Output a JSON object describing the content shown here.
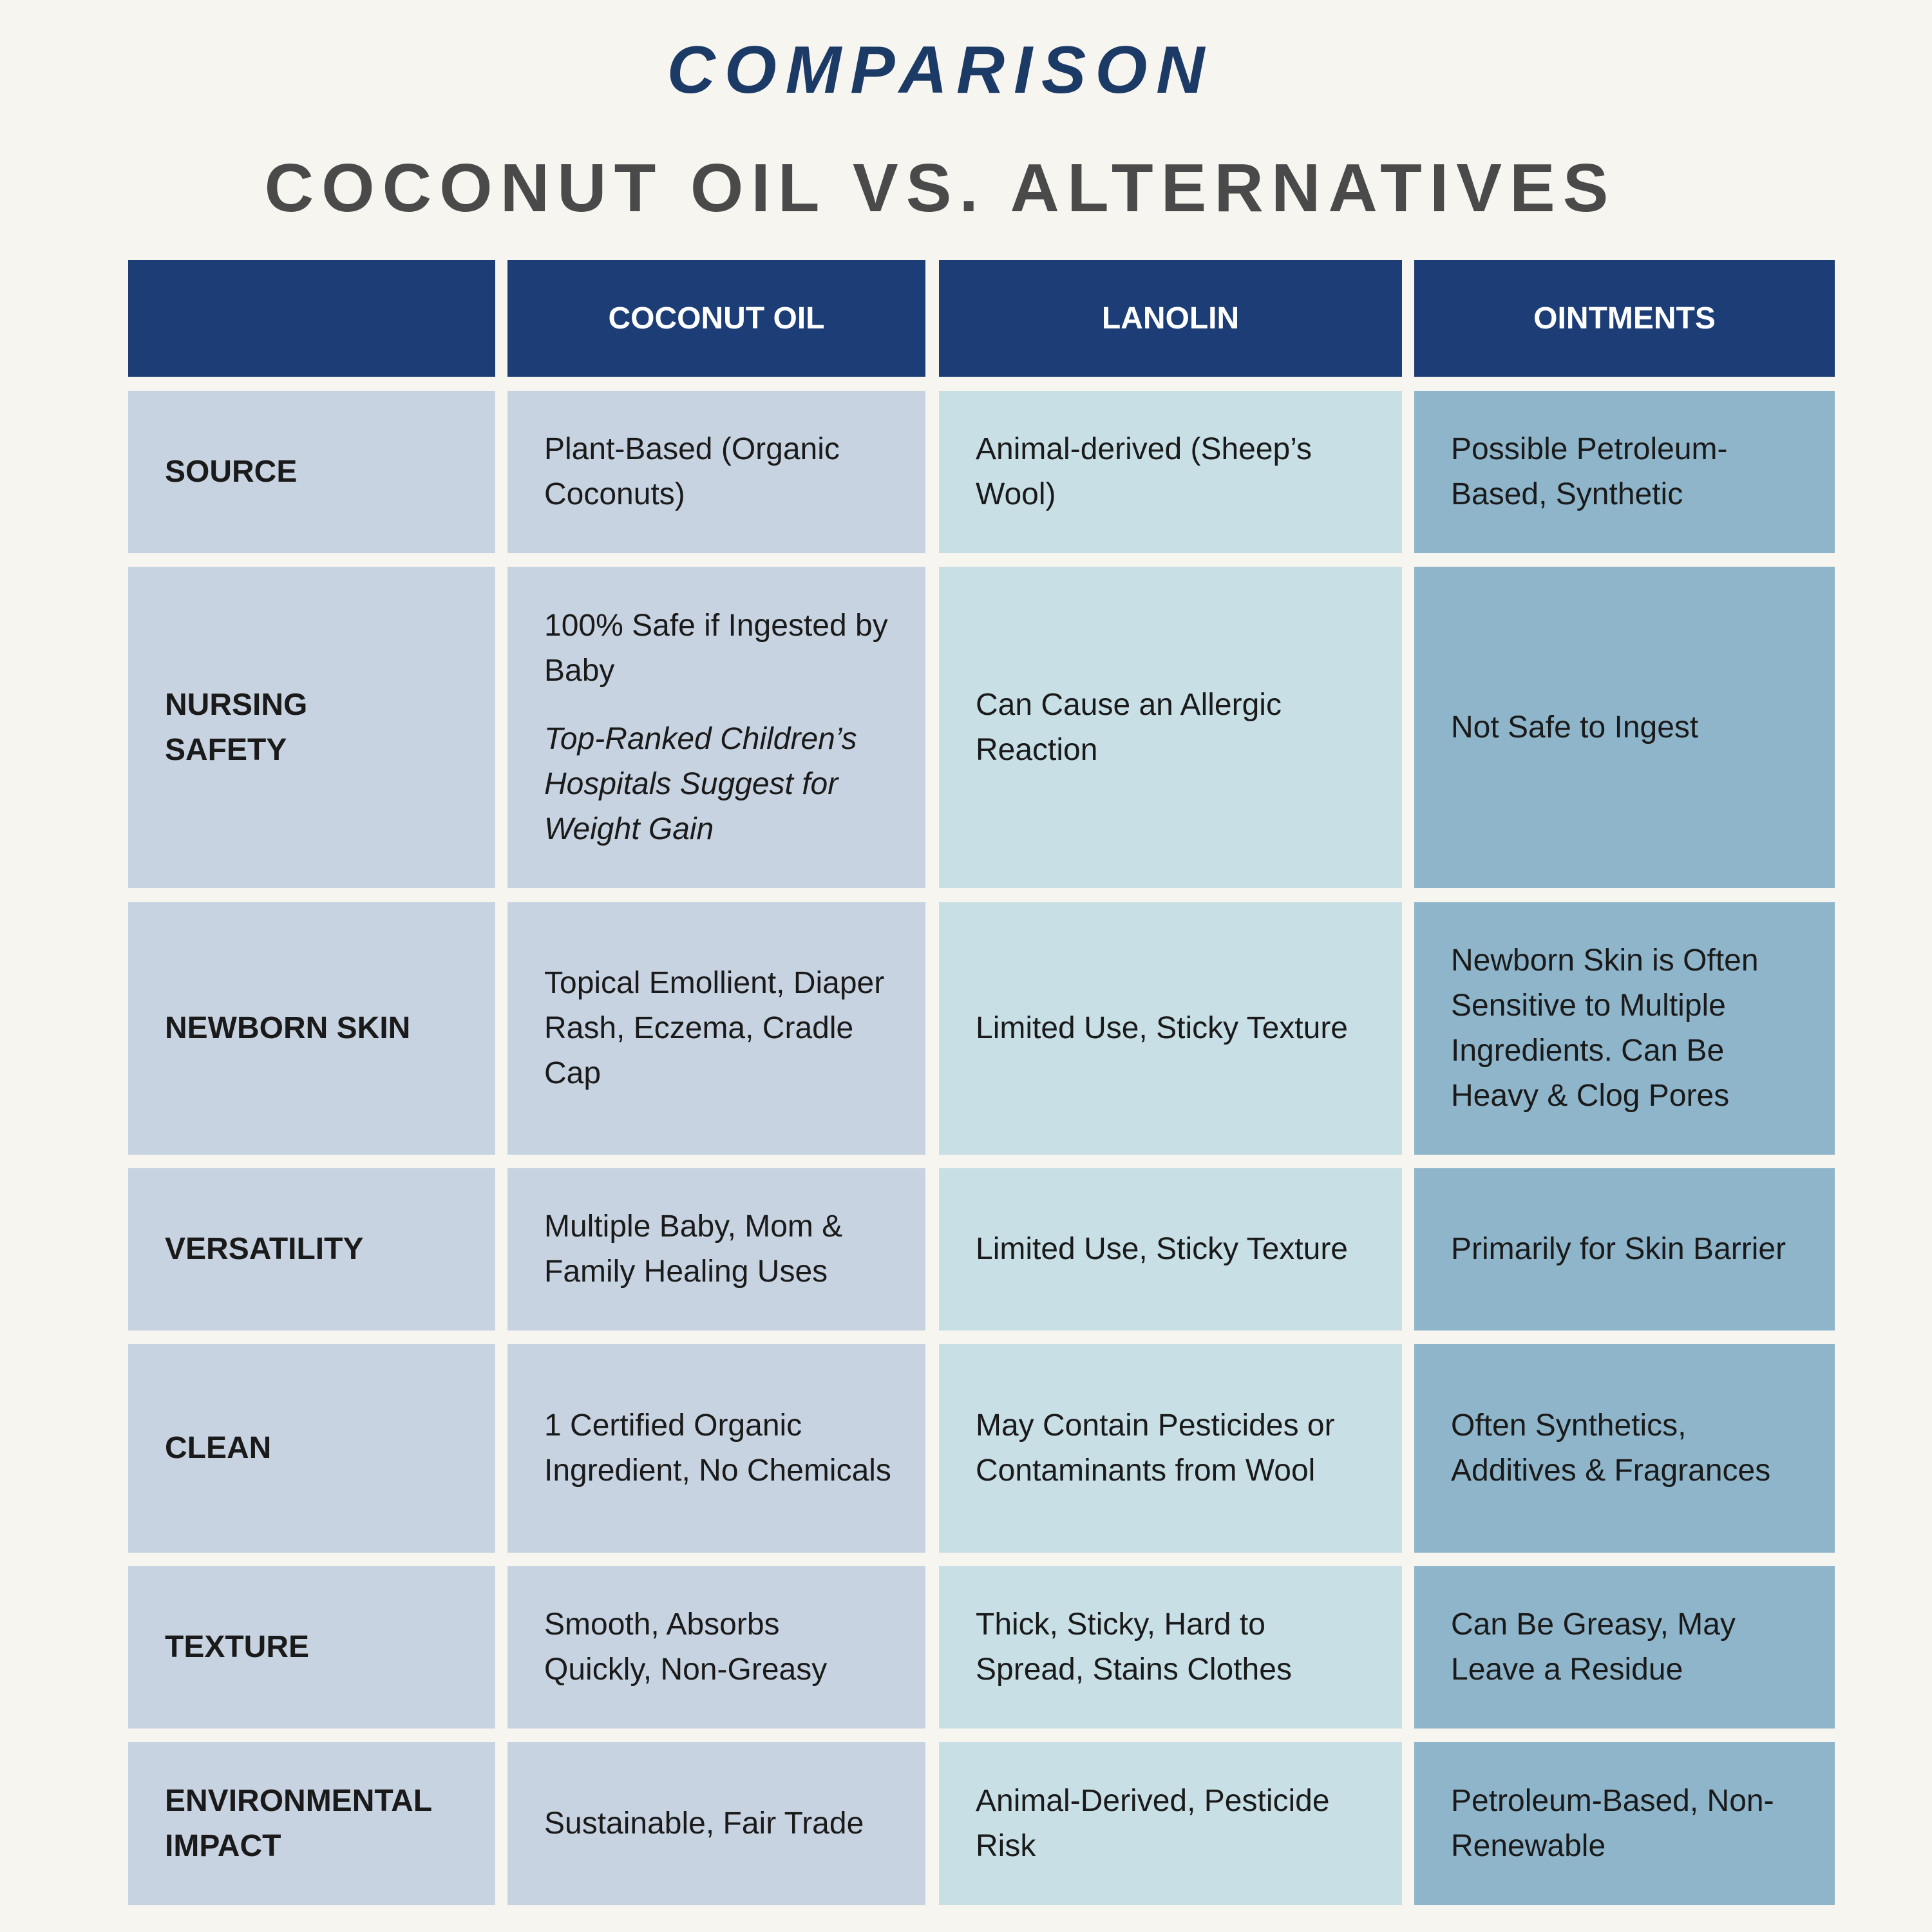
{
  "title": "COMPARISON",
  "subtitle": "COCONUT OIL VS. ALTERNATIVES",
  "table": {
    "header": [
      "COCONUT OIL",
      "LANOLIN",
      "OINTMENTS"
    ],
    "rows": [
      {
        "label": "SOURCE",
        "cells": [
          "Plant-Based (Organic Coconuts)",
          "Animal-derived (Sheep’s Wool)",
          "Possible Petroleum-Based, Synthetic"
        ]
      },
      {
        "label": "NURSING SAFETY",
        "cells": [
          {
            "text": "100% Safe if Ingested by Baby",
            "note": "Top-Ranked Children’s Hospitals Suggest for Weight Gain"
          },
          "Can Cause an Allergic Reaction",
          "Not Safe to Ingest"
        ]
      },
      {
        "label": "NEWBORN SKIN",
        "cells": [
          "Topical Emollient, Diaper Rash, Eczema, Cradle Cap",
          "Limited Use, Sticky Texture",
          "Newborn Skin is Often Sensitive to Multiple Ingredients. Can Be Heavy & Clog Pores"
        ]
      },
      {
        "label": "VERSATILITY",
        "cells": [
          "Multiple Baby, Mom & Family Healing Uses",
          "Limited Use, Sticky Texture",
          "Primarily for Skin Barrier"
        ]
      },
      {
        "label": "CLEAN",
        "cells": [
          "1 Certified Organic Ingredient, No Chemicals",
          "May Contain Pesticides or Contaminants from Wool",
          "Often Synthetics, Additives & Fragrances"
        ]
      },
      {
        "label": "TEXTURE",
        "cells": [
          "Smooth, Absorbs Quickly, Non-Greasy",
          "Thick, Sticky, Hard to Spread, Stains Clothes",
          "Can Be Greasy, May Leave a Residue"
        ]
      },
      {
        "label": "ENVIRONMENTAL IMPACT",
        "cells": [
          "Sustainable, Fair Trade",
          "Animal-Derived, Pesticide Risk",
          "Petroleum-Based, Non-Renewable"
        ]
      }
    ]
  }
}
